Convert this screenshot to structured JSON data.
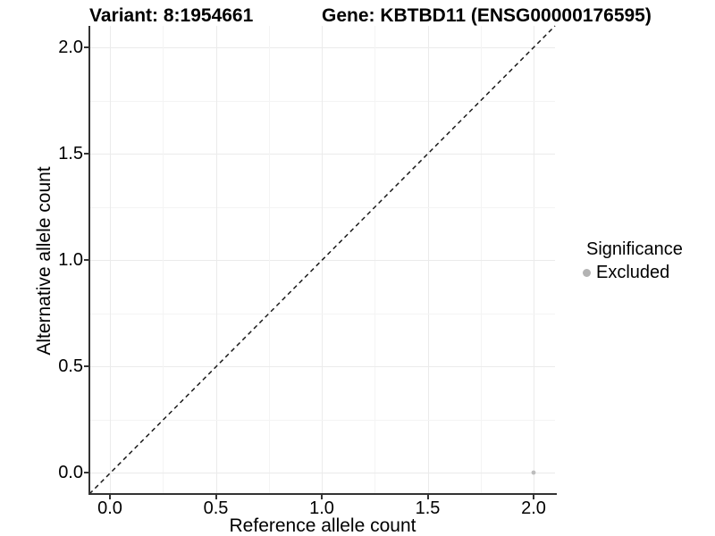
{
  "titles": {
    "variant": "Variant: 8:1954661",
    "gene": "Gene: KBTBD11 (ENSG00000176595)"
  },
  "chart_data": {
    "type": "scatter",
    "xlabel": "Reference allele count",
    "ylabel": "Alternative allele count",
    "x_ticks": [
      "0.0",
      "0.5",
      "1.0",
      "1.5",
      "2.0"
    ],
    "y_ticks": [
      "0.0",
      "0.5",
      "1.0",
      "1.5",
      "2.0"
    ],
    "xlim": [
      -0.1,
      2.1
    ],
    "ylim": [
      -0.1,
      2.1
    ],
    "grid": {
      "shown": true,
      "major_every": 0.5,
      "minor_every": 0.25
    },
    "points": [
      {
        "x": 2.0,
        "y": 0.0,
        "series": "Excluded"
      }
    ],
    "reference_line": {
      "kind": "identity",
      "slope": 1,
      "intercept": 0,
      "style": "dashed"
    },
    "legend": {
      "title": "Significance",
      "position": "right",
      "entries": [
        {
          "label": "Excluded",
          "marker": "circle"
        }
      ]
    }
  },
  "colors": {
    "background": "#ffffff",
    "text": "#000000",
    "axis_line": "#333333",
    "grid_major": "#ebebeb",
    "grid_minor": "#f4f4f4",
    "dashed_line": "#1a1a1a",
    "point": "#bdbdbd",
    "legend_dot": "#b3b3b3"
  }
}
